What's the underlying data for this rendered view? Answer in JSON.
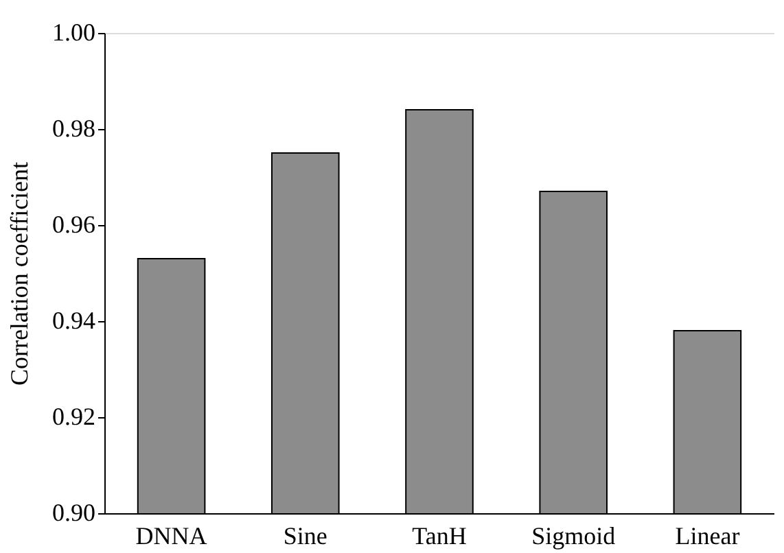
{
  "chart_data": {
    "type": "bar",
    "ylabel": "Correlation coefficient",
    "categories": [
      "DNNA",
      "Sine",
      "TanH",
      "Sigmoid",
      "Linear"
    ],
    "values": [
      0.953,
      0.975,
      0.984,
      0.967,
      0.938
    ],
    "color": "#8c8c8c",
    "ylim": [
      0.9,
      1.0
    ],
    "yticks": [
      {
        "value": 0.9,
        "label": "0.90"
      },
      0.92,
      0.94,
      0.96,
      0.98,
      {
        "value": 1.0,
        "label": "1.00"
      }
    ],
    "grid": false
  }
}
